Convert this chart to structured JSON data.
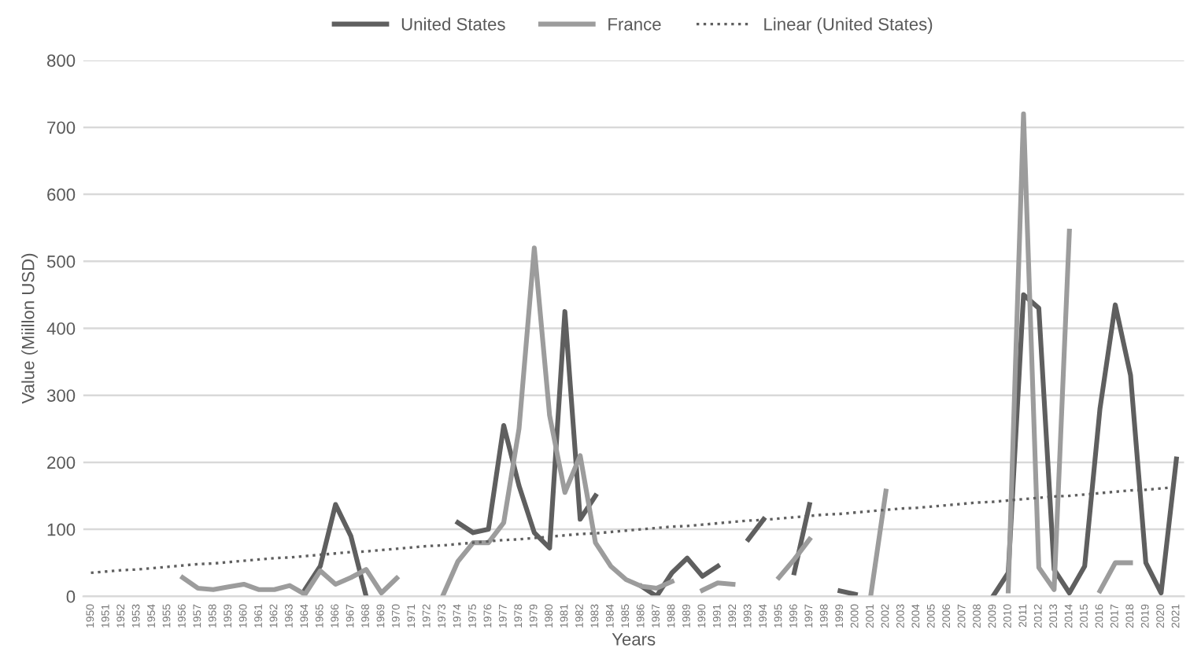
{
  "chart_data": {
    "type": "line",
    "xlabel": "Years",
    "ylabel": "Value (Miillon USD)",
    "categories": [
      "1950",
      "1951",
      "1952",
      "1953",
      "1954",
      "1955",
      "1956",
      "1957",
      "1958",
      "1959",
      "1960",
      "1961",
      "1962",
      "1963",
      "1964",
      "1965",
      "1966",
      "1967",
      "1968",
      "1969",
      "1970",
      "1971",
      "1972",
      "1973",
      "1974",
      "1975",
      "1976",
      "1977",
      "1978",
      "1979",
      "1980",
      "1981",
      "1982",
      "1983",
      "1984",
      "1985",
      "1986",
      "1987",
      "1988",
      "1989",
      "1990",
      "1991",
      "1992",
      "1993",
      "1994",
      "1995",
      "1996",
      "1997",
      "1998",
      "1999",
      "2000",
      "2001",
      "2002",
      "2003",
      "2004",
      "2005",
      "2006",
      "2007",
      "2008",
      "2009",
      "2010",
      "2011",
      "2012",
      "2013",
      "2014",
      "2015",
      "2016",
      "2017",
      "2018",
      "2019",
      "2020",
      "2021"
    ],
    "series": [
      {
        "name": "United States",
        "color": "#5f5f5f",
        "values": [
          null,
          null,
          null,
          null,
          null,
          null,
          null,
          null,
          null,
          null,
          null,
          null,
          null,
          null,
          10,
          45,
          137,
          90,
          0,
          null,
          null,
          null,
          null,
          null,
          110,
          95,
          100,
          255,
          165,
          95,
          72,
          425,
          115,
          150,
          null,
          null,
          15,
          0,
          35,
          57,
          30,
          45,
          null,
          85,
          115,
          null,
          35,
          137,
          null,
          8,
          3,
          null,
          null,
          null,
          null,
          null,
          null,
          null,
          null,
          0,
          35,
          450,
          430,
          40,
          5,
          45,
          280,
          435,
          330,
          50,
          5,
          205
        ]
      },
      {
        "name": "France",
        "color": "#9c9c9c",
        "values": [
          null,
          null,
          null,
          null,
          null,
          null,
          28,
          12,
          10,
          14,
          18,
          10,
          10,
          16,
          3,
          38,
          18,
          28,
          40,
          5,
          27,
          null,
          null,
          0,
          52,
          80,
          80,
          110,
          250,
          520,
          270,
          155,
          210,
          80,
          45,
          25,
          15,
          12,
          22,
          null,
          9,
          20,
          18,
          null,
          null,
          28,
          55,
          85,
          null,
          null,
          null,
          0,
          157,
          null,
          null,
          null,
          null,
          null,
          null,
          null,
          8,
          720,
          43,
          10,
          545,
          null,
          8,
          50,
          50,
          null,
          null,
          null
        ]
      },
      {
        "name": "Linear (United States)",
        "color": "#5f5f5f",
        "line_style": "dotted",
        "values": [
          35,
          37,
          39,
          40,
          42,
          44,
          46,
          48,
          49,
          51,
          53,
          55,
          57,
          58,
          60,
          62,
          64,
          66,
          67,
          69,
          71,
          73,
          75,
          76,
          78,
          80,
          82,
          84,
          85,
          87,
          89,
          91,
          93,
          94,
          96,
          98,
          100,
          102,
          104,
          105,
          107,
          109,
          111,
          113,
          114,
          116,
          118,
          120,
          122,
          123,
          125,
          127,
          129,
          131,
          132,
          134,
          136,
          138,
          140,
          141,
          143,
          145,
          147,
          149,
          150,
          152,
          154,
          156,
          158,
          159,
          161,
          163
        ]
      }
    ],
    "ylim": [
      0,
      800
    ],
    "yticks": [
      0,
      100,
      200,
      300,
      400,
      500,
      600,
      700,
      800
    ],
    "grid": "y",
    "legend": "top"
  }
}
